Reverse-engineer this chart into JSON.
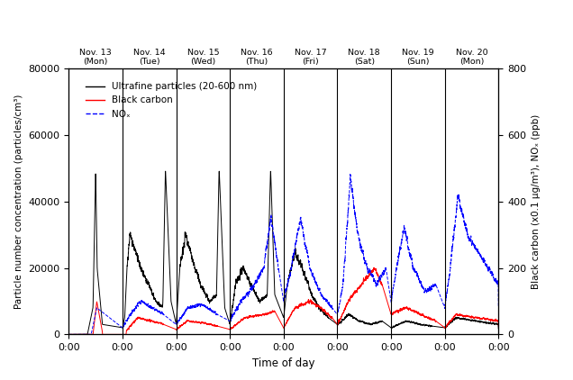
{
  "xlabel": "Time of day",
  "ylabel_left": "Particle number concentration (particles/cm³)",
  "ylabel_right": "Black carbon (x0.1 μg/m³), NOₓ (ppb)",
  "ylim_left": [
    0,
    80000
  ],
  "ylim_right": [
    0,
    800
  ],
  "yticks_left": [
    0,
    20000,
    40000,
    60000,
    80000
  ],
  "yticks_right": [
    0,
    200,
    400,
    600,
    800
  ],
  "days": [
    "Nov. 13\n(Mon)",
    "Nov. 14\n(Tue)",
    "Nov. 15\n(Wed)",
    "Nov. 16\n(Thu)",
    "Nov. 17\n(Fri)",
    "Nov. 18\n(Sat)",
    "Nov. 19\n(Sun)",
    "Nov. 20\n(Mon)"
  ],
  "legend_labels": [
    "Ultrafine particles (20-600 nm)",
    "Black carbon",
    "NOₓ"
  ],
  "xtick_labels": [
    "0:00",
    "0:00",
    "0:00",
    "0:00",
    "0:00",
    "0:00",
    "0:00",
    "0:00",
    "0:00"
  ],
  "background_color": "#ffffff",
  "total_minutes": 11520,
  "minutes_per_day": 1440,
  "scale_lr": 100
}
